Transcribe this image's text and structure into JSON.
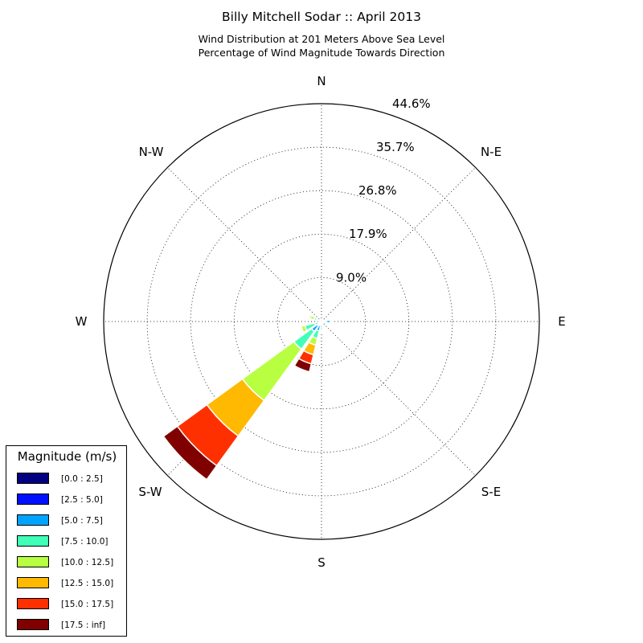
{
  "chart_data": {
    "type": "windrose",
    "title": "Billy Mitchell Sodar :: April 2013",
    "subtitle_line1": "Wind Distribution at 201 Meters Above Sea Level",
    "subtitle_line2": "Percentage of Wind Magnitude Towards Direction",
    "directions": [
      "N",
      "N-E",
      "E",
      "S-E",
      "S",
      "S-W",
      "W",
      "N-W"
    ],
    "radial_ticks": [
      "9.0%",
      "17.9%",
      "26.8%",
      "35.7%",
      "44.6%"
    ],
    "radial_tick_values": [
      9.0,
      17.9,
      26.8,
      35.7,
      44.6
    ],
    "rmax": 44.6,
    "legend_title": "Magnitude (m/s)",
    "bins": [
      "[0.0 : 2.5]",
      "[2.5 : 5.0]",
      "[5.0 : 7.5]",
      "[7.5 : 10.0]",
      "[10.0 : 12.5]",
      "[12.5 : 15.0]",
      "[15.0 : 17.5]",
      "[17.5 : inf]"
    ],
    "bin_colors": [
      "#000080",
      "#0010ff",
      "#00a4ff",
      "#40ffb7",
      "#b7ff40",
      "#ffb900",
      "#ff3000",
      "#800000"
    ],
    "sectors": [
      {
        "direction_deg": 90,
        "cumulative": [
          0.3,
          1.0,
          1.8,
          2.0,
          2.3,
          2.5,
          2.5,
          2.5
        ]
      },
      {
        "direction_deg": 180,
        "cumulative": [
          0.2,
          0.5,
          1.3,
          1.7,
          2.0,
          2.2,
          2.2,
          2.2
        ]
      },
      {
        "direction_deg": 202.5,
        "cumulative": [
          0.2,
          0.8,
          2.0,
          3.6,
          5.0,
          7.0,
          8.9,
          10.6
        ]
      },
      {
        "direction_deg": 225,
        "cumulative": [
          0.2,
          1.0,
          2.5,
          7.0,
          20.0,
          29.0,
          36.5,
          40.0
        ]
      },
      {
        "direction_deg": 247.5,
        "cumulative": [
          0.2,
          0.6,
          1.4,
          3.5,
          4.3,
          4.5,
          4.5,
          4.5
        ]
      },
      {
        "direction_deg": 292.5,
        "cumulative": [
          0.2,
          0.5,
          1.1,
          1.6,
          2.4,
          2.7,
          2.7,
          2.7
        ]
      }
    ]
  }
}
